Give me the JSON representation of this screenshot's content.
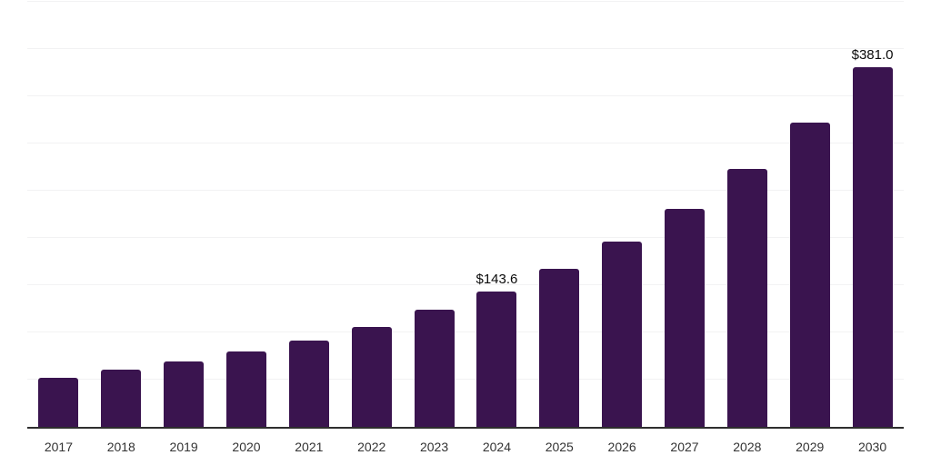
{
  "style": {
    "background_color": "#ffffff",
    "bar_color": "#3a144f",
    "axis_line_color": "#2e2e2e",
    "gridline_color": "#f2f2f3",
    "x_label_color": "#333333",
    "data_label_color": "#0a0a0a"
  },
  "chart_data": {
    "type": "bar",
    "title": "",
    "xlabel": "",
    "ylabel": "",
    "categories": [
      "2017",
      "2018",
      "2019",
      "2020",
      "2021",
      "2022",
      "2023",
      "2024",
      "2025",
      "2026",
      "2027",
      "2028",
      "2029",
      "2030"
    ],
    "values": [
      52.4,
      60.3,
      69.7,
      79.4,
      91.5,
      105.9,
      124.1,
      143.6,
      167.4,
      196.3,
      231.2,
      273.0,
      322.6,
      381.0
    ],
    "data_labels": [
      "",
      "",
      "",
      "",
      "",
      "",
      "",
      "$143.6",
      "",
      "",
      "",
      "",
      "",
      "$381.0"
    ],
    "ylim": [
      0,
      450
    ],
    "grid_step": 50,
    "grid": true,
    "y_tick_labels_visible": false,
    "legend": false
  }
}
